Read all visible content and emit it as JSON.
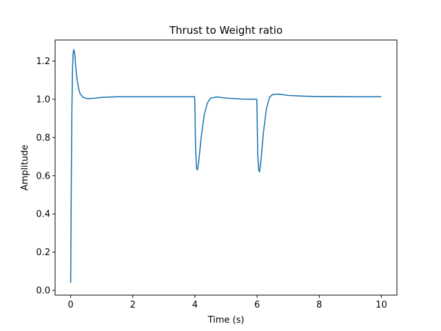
{
  "chart_data": {
    "type": "line",
    "title": "Thrust to Weight ratio",
    "xlabel": "Time (s)",
    "ylabel": "Amplitude",
    "xlim": [
      -0.5,
      10.5
    ],
    "ylim": [
      -0.025,
      1.31
    ],
    "xticks": [
      0,
      2,
      4,
      6,
      8,
      10
    ],
    "xtick_labels": [
      "0",
      "2",
      "4",
      "6",
      "8",
      "10"
    ],
    "yticks": [
      0.0,
      0.2,
      0.4,
      0.6,
      0.8,
      1.0,
      1.2
    ],
    "ytick_labels": [
      "0.0",
      "0.2",
      "0.4",
      "0.6",
      "0.8",
      "1.0",
      "1.2"
    ],
    "grid": false,
    "series": [
      {
        "color": "#1f77b4",
        "x": [
          0.0,
          0.02,
          0.04,
          0.06,
          0.08,
          0.1,
          0.13,
          0.16,
          0.2,
          0.25,
          0.3,
          0.4,
          0.5,
          0.6,
          0.8,
          1.0,
          1.5,
          2.0,
          3.0,
          3.99,
          4.0,
          4.02,
          4.05,
          4.08,
          4.12,
          4.2,
          4.3,
          4.4,
          4.5,
          4.7,
          5.0,
          5.5,
          5.99,
          6.0,
          6.02,
          6.05,
          6.08,
          6.12,
          6.2,
          6.3,
          6.4,
          6.5,
          6.7,
          7.0,
          7.5,
          8.0,
          9.0,
          10.0
        ],
        "y": [
          0.04,
          0.55,
          0.95,
          1.16,
          1.24,
          1.26,
          1.24,
          1.18,
          1.11,
          1.06,
          1.03,
          1.01,
          1.004,
          1.003,
          1.006,
          1.01,
          1.013,
          1.013,
          1.013,
          1.013,
          0.95,
          0.75,
          0.64,
          0.63,
          0.67,
          0.8,
          0.92,
          0.98,
          1.005,
          1.012,
          1.006,
          1.001,
          1.0,
          0.93,
          0.72,
          0.63,
          0.62,
          0.67,
          0.82,
          0.95,
          1.01,
          1.025,
          1.027,
          1.02,
          1.016,
          1.014,
          1.013,
          1.013
        ]
      }
    ]
  }
}
